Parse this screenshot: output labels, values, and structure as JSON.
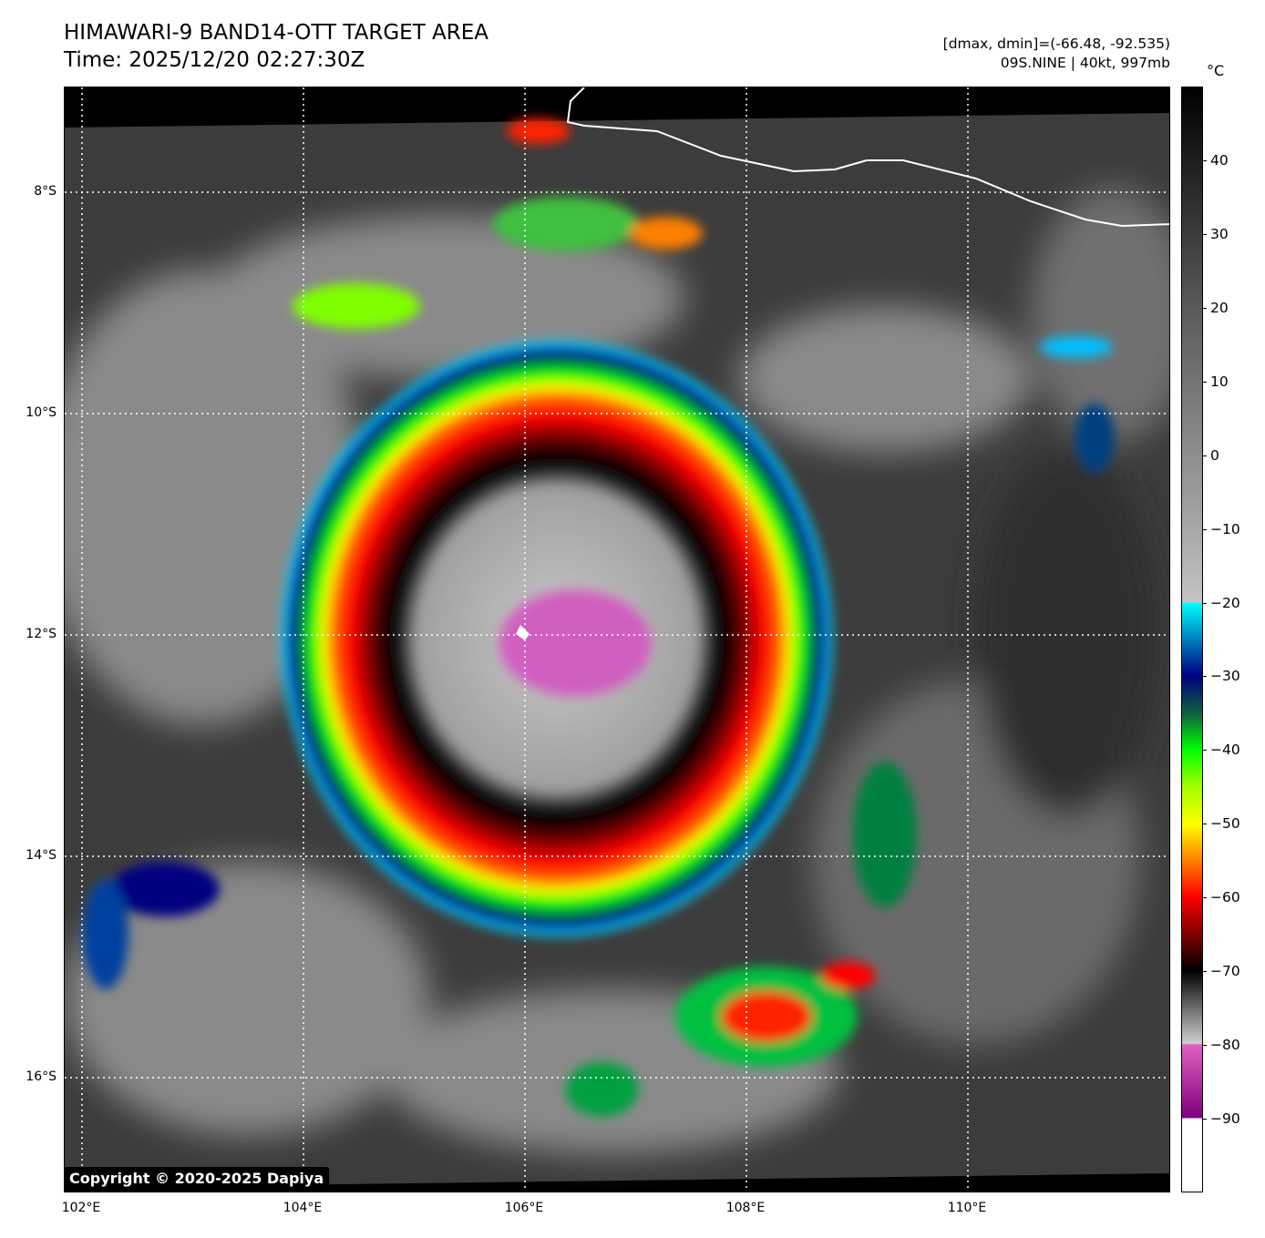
{
  "header": {
    "title_line1": "HIMAWARI-9 BAND14-OTT TARGET AREA",
    "title_line2": "Time: 2025/12/20 02:27:30Z",
    "stats": "[dmax, dmin]=(-66.48, -92.535)",
    "storm": "09S.NINE | 40kt, 997mb"
  },
  "map": {
    "lon_labels": [
      "102°E",
      "104°E",
      "106°E",
      "108°E",
      "110°E"
    ],
    "lat_labels": [
      "8°S",
      "10°S",
      "12°S",
      "14°S",
      "16°S"
    ]
  },
  "colorbar": {
    "unit": "°C",
    "range": [
      -100,
      50
    ],
    "ticks": [
      "40",
      "30",
      "20",
      "10",
      "0",
      "−10",
      "−20",
      "−30",
      "−40",
      "−50",
      "−60",
      "−70",
      "−80",
      "−90"
    ],
    "tick_values": [
      40,
      30,
      20,
      10,
      0,
      -10,
      -20,
      -30,
      -40,
      -50,
      -60,
      -70,
      -80,
      -90
    ]
  },
  "copyright": "Copyright © 2020-2025 Dapiya"
}
